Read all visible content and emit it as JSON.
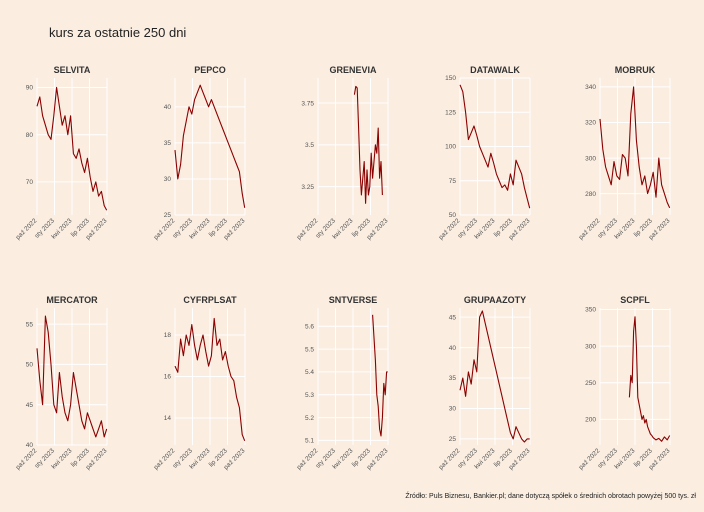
{
  "title": "kurs za ostatnie 250 dni",
  "source": "Źródło: Puls Biznesu, Bankier.pl; dane dotyczą spółek o średnich obrotach powyżej 500 tys. zł",
  "colors": {
    "background": "#fbeee1",
    "line": "#8b0000",
    "grid": "#ffffff"
  },
  "chart_data": [
    {
      "type": "line",
      "name": "SELVITA",
      "x_ticks": [
        "paź 2022",
        "sty 2023",
        "kwi 2023",
        "lip 2023",
        "paź 2023"
      ],
      "x_range": [
        0,
        250
      ],
      "y_ticks": [
        70,
        80,
        90
      ],
      "ylim": [
        63,
        92
      ],
      "series": [
        {
          "x": [
            0,
            10,
            20,
            30,
            40,
            50,
            60,
            70,
            80,
            90,
            100,
            110,
            120,
            130,
            140,
            150,
            160,
            170,
            180,
            190,
            200,
            210,
            220,
            230,
            240,
            249
          ],
          "y": [
            86,
            88,
            84,
            82,
            80,
            79,
            84,
            90,
            86,
            82,
            84,
            80,
            84,
            76,
            75,
            77,
            74,
            72,
            75,
            71,
            68,
            70,
            67,
            68,
            65,
            64
          ]
        }
      ]
    },
    {
      "type": "line",
      "name": "PEPCO",
      "x_ticks": [
        "paź 2022",
        "sty 2023",
        "kwi 2023",
        "lip 2023",
        "paź 2023"
      ],
      "x_range": [
        0,
        250
      ],
      "y_ticks": [
        25,
        30,
        35,
        40
      ],
      "ylim": [
        25,
        44
      ],
      "series": [
        {
          "x": [
            0,
            10,
            20,
            30,
            40,
            50,
            60,
            70,
            80,
            90,
            100,
            110,
            120,
            130,
            140,
            150,
            160,
            170,
            180,
            190,
            200,
            210,
            220,
            230,
            240,
            249
          ],
          "y": [
            34,
            30,
            32,
            36,
            38,
            40,
            39,
            41,
            42,
            43,
            42,
            41,
            40,
            41,
            40,
            39,
            38,
            37,
            36,
            35,
            34,
            33,
            32,
            31,
            28,
            26
          ]
        }
      ]
    },
    {
      "type": "line",
      "name": "GRENEVIA",
      "x_ticks": [
        "paź 2022",
        "sty 2023",
        "kwi 2023",
        "lip 2023",
        "paź 2023"
      ],
      "x_range": [
        0,
        250
      ],
      "y_ticks": [
        3.25,
        3.5,
        3.75
      ],
      "ylim": [
        3.08,
        3.9
      ],
      "series": [
        {
          "x": [
            130,
            135,
            140,
            145,
            150,
            155,
            160,
            165,
            170,
            175,
            180,
            185,
            190,
            195,
            200,
            205,
            210,
            215,
            220,
            225,
            230
          ],
          "y": [
            3.8,
            3.85,
            3.84,
            3.6,
            3.35,
            3.2,
            3.3,
            3.4,
            3.15,
            3.35,
            3.2,
            3.25,
            3.45,
            3.3,
            3.4,
            3.5,
            3.45,
            3.6,
            3.3,
            3.4,
            3.2
          ]
        }
      ]
    },
    {
      "type": "line",
      "name": "DATAWALK",
      "x_ticks": [
        "paź 2022",
        "sty 2023",
        "kwi 2023",
        "lip 2023",
        "paź 2023"
      ],
      "x_range": [
        0,
        250
      ],
      "y_ticks": [
        50,
        75,
        100,
        125,
        150
      ],
      "ylim": [
        50,
        150
      ],
      "series": [
        {
          "x": [
            0,
            10,
            20,
            30,
            40,
            50,
            60,
            70,
            80,
            90,
            100,
            110,
            120,
            130,
            140,
            150,
            160,
            170,
            180,
            190,
            200,
            210,
            220,
            230,
            240,
            249
          ],
          "y": [
            145,
            140,
            125,
            105,
            110,
            115,
            108,
            100,
            95,
            90,
            85,
            95,
            88,
            80,
            75,
            70,
            72,
            68,
            80,
            72,
            90,
            85,
            80,
            70,
            62,
            55
          ]
        }
      ]
    },
    {
      "type": "line",
      "name": "MOBRUK",
      "x_ticks": [
        "paź 2022",
        "sty 2023",
        "kwi 2023",
        "lip 2023",
        "paź 2023"
      ],
      "x_range": [
        0,
        250
      ],
      "y_ticks": [
        280,
        300,
        320,
        340
      ],
      "ylim": [
        268,
        345
      ],
      "series": [
        {
          "x": [
            0,
            10,
            20,
            30,
            40,
            50,
            60,
            70,
            80,
            90,
            100,
            110,
            120,
            130,
            140,
            150,
            160,
            170,
            180,
            190,
            200,
            210,
            220,
            230,
            240,
            249
          ],
          "y": [
            322,
            305,
            295,
            290,
            285,
            298,
            290,
            288,
            302,
            300,
            290,
            325,
            340,
            310,
            295,
            285,
            290,
            280,
            285,
            292,
            278,
            300,
            285,
            280,
            275,
            272
          ]
        }
      ]
    },
    {
      "type": "line",
      "name": "MERCATOR",
      "x_ticks": [
        "paź 2022",
        "sty 2023",
        "kwi 2023",
        "lip 2023",
        "paź 2023"
      ],
      "x_range": [
        0,
        250
      ],
      "y_ticks": [
        40,
        45,
        50,
        55
      ],
      "ylim": [
        40,
        57
      ],
      "series": [
        {
          "x": [
            0,
            10,
            20,
            30,
            40,
            50,
            60,
            70,
            80,
            90,
            100,
            110,
            120,
            130,
            140,
            150,
            160,
            170,
            180,
            190,
            200,
            210,
            220,
            230,
            240,
            249
          ],
          "y": [
            52,
            48,
            45,
            56,
            54,
            50,
            45,
            44,
            49,
            46,
            44,
            43,
            45,
            49,
            47,
            45,
            43,
            42,
            44,
            43,
            42,
            41,
            42,
            43,
            41,
            42
          ]
        }
      ]
    },
    {
      "type": "line",
      "name": "CYFRPLSAT",
      "x_ticks": [
        "paź 2022",
        "sty 2023",
        "kwi 2023",
        "lip 2023",
        "paź 2023"
      ],
      "x_range": [
        0,
        250
      ],
      "y_ticks": [
        14,
        16,
        18
      ],
      "ylim": [
        12.7,
        19.3
      ],
      "series": [
        {
          "x": [
            0,
            10,
            20,
            30,
            40,
            50,
            60,
            70,
            80,
            90,
            100,
            110,
            120,
            130,
            140,
            150,
            160,
            170,
            180,
            190,
            200,
            210,
            220,
            230,
            240,
            249
          ],
          "y": [
            16.5,
            16.2,
            17.8,
            17.0,
            18.0,
            17.5,
            18.5,
            17.5,
            16.8,
            17.5,
            18.0,
            17.2,
            16.5,
            17.0,
            18.8,
            17.5,
            17.8,
            16.8,
            17.2,
            16.5,
            16.0,
            15.8,
            15.0,
            14.5,
            13.2,
            12.9
          ]
        }
      ]
    },
    {
      "type": "line",
      "name": "SNTVERSE",
      "x_ticks": [
        "paź 2022",
        "sty 2023",
        "kwi 2023",
        "lip 2023",
        "paź 2023"
      ],
      "x_range": [
        0,
        250
      ],
      "y_ticks": [
        5.1,
        5.2,
        5.3,
        5.4,
        5.5,
        5.6
      ],
      "ylim": [
        5.08,
        5.68
      ],
      "series": [
        {
          "x": [
            195,
            200,
            205,
            210,
            215,
            220,
            225,
            230,
            235,
            240,
            245,
            249
          ],
          "y": [
            5.65,
            5.55,
            5.45,
            5.3,
            5.25,
            5.15,
            5.12,
            5.2,
            5.35,
            5.3,
            5.4,
            5.4
          ]
        }
      ]
    },
    {
      "type": "line",
      "name": "GRUPAAZOTY",
      "x_ticks": [
        "paź 2022",
        "sty 2023",
        "kwi 2023",
        "lip 2023",
        "paź 2023"
      ],
      "x_range": [
        0,
        250
      ],
      "y_ticks": [
        25,
        30,
        35,
        40,
        45
      ],
      "ylim": [
        24,
        46.5
      ],
      "series": [
        {
          "x": [
            0,
            10,
            20,
            30,
            40,
            50,
            60,
            70,
            80,
            90,
            100,
            110,
            120,
            130,
            140,
            150,
            160,
            170,
            180,
            190,
            200,
            210,
            220,
            230,
            240,
            249
          ],
          "y": [
            33,
            35,
            32,
            36,
            34,
            38,
            36,
            45,
            46,
            44,
            42,
            40,
            38,
            36,
            34,
            32,
            30,
            28,
            26,
            25,
            27,
            26,
            25,
            24.5,
            25,
            25
          ]
        }
      ]
    },
    {
      "type": "line",
      "name": "SCPFL",
      "x_ticks": [
        "paź 2022",
        "sty 2023",
        "kwi 2023",
        "lip 2023",
        "paź 2023"
      ],
      "x_range": [
        0,
        250
      ],
      "y_ticks": [
        200,
        250,
        300,
        350
      ],
      "ylim": [
        165,
        352
      ],
      "series": [
        {
          "x": [
            105,
            110,
            115,
            120,
            125,
            130,
            135,
            140,
            145,
            150,
            155,
            160,
            165,
            170,
            175,
            180,
            185,
            190,
            200,
            210,
            220,
            230,
            240,
            249
          ],
          "y": [
            230,
            260,
            250,
            320,
            340,
            300,
            230,
            220,
            210,
            200,
            205,
            195,
            200,
            190,
            185,
            180,
            178,
            175,
            172,
            174,
            170,
            176,
            172,
            178
          ]
        }
      ]
    }
  ]
}
